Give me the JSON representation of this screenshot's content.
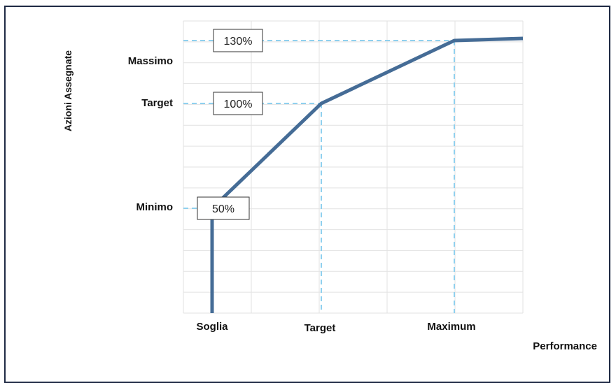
{
  "chart_data": {
    "type": "line",
    "ylabel": "Azioni Assegnate",
    "xlabel": "Performance",
    "x_ticks": [
      "Soglia",
      "Target",
      "Maximum"
    ],
    "y_ticks": [
      "Massimo",
      "Target",
      "Minimo"
    ],
    "series": [
      {
        "points": [
          {
            "x": "Soglia",
            "y": 0
          },
          {
            "x": "Soglia",
            "y": 50
          },
          {
            "x": "Target",
            "y": 100
          },
          {
            "x": "Maximum",
            "y": 130
          },
          {
            "x": "end",
            "y": 131
          }
        ]
      }
    ],
    "annotations": [
      {
        "label": "130%",
        "y": 130
      },
      {
        "label": "100%",
        "y": 100
      },
      {
        "label": "50%",
        "y": 50
      }
    ],
    "grid": true,
    "colors": {
      "line": "#456c96",
      "guide": "#8fd0ee",
      "grid": "#e2e2e2",
      "frame": "#1f2a44"
    }
  }
}
